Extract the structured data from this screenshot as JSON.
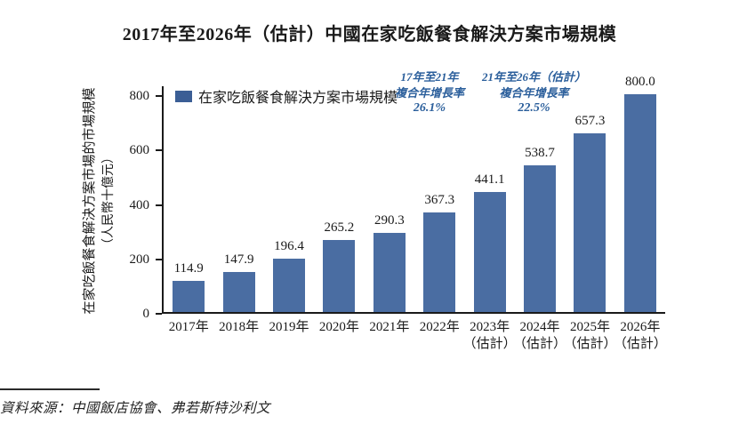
{
  "page": {
    "title": "2017年至2026年（估計）中國在家吃飯餐食解決方案市場規模",
    "source": "資料來源：中國飯店協會、弗若斯特沙利文"
  },
  "chart_data": {
    "type": "bar",
    "title": "2017年至2026年（估計）中國在家吃飯餐食解決方案市場規模",
    "legend": "在家吃飯餐食解決方案市場規模",
    "legend_position": "top-left",
    "ylabel_line1": "在家吃飯餐食解決方案市場的市場規模",
    "ylabel_line2": "（人民幣十億元）",
    "categories": [
      "2017年",
      "2018年",
      "2019年",
      "2020年",
      "2021年",
      "2022年",
      "2023年",
      "2024年",
      "2025年",
      "2026年"
    ],
    "category_sublabels": [
      "",
      "",
      "",
      "",
      "",
      "",
      "（估計）",
      "（估計）",
      "（估計）",
      "（估計）"
    ],
    "values": [
      114.9,
      147.9,
      196.4,
      265.2,
      290.3,
      367.3,
      441.1,
      538.7,
      657.3,
      800.0
    ],
    "value_labels": [
      "114.9",
      "147.9",
      "196.4",
      "265.2",
      "290.3",
      "367.3",
      "441.1",
      "538.7",
      "657.3",
      "800.0"
    ],
    "yticks": [
      0,
      200,
      400,
      600,
      800
    ],
    "ylim": [
      0,
      800
    ],
    "grid": false,
    "annotations": [
      {
        "line1": "17年至21年",
        "line2": "複合年增長率",
        "line3": "26.1%"
      },
      {
        "line1": "21年至26年（估計）",
        "line2": "複合年增長率",
        "line3": "22.5%"
      }
    ],
    "colors": {
      "bar": "#4A6DA2",
      "legend_square": "#3B5E95",
      "annotation": "#2A5E9B",
      "axis": "#1A1A1A"
    }
  }
}
